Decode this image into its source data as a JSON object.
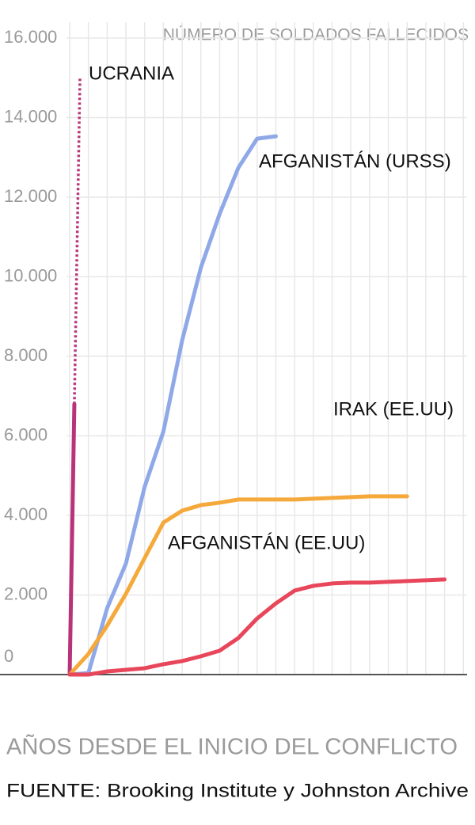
{
  "chart_data": {
    "type": "line",
    "y_label": "NÚMERO DE SOLDADOS FALLECIDOS",
    "x_label": "AÑOS DESDE EL INICIO DEL CONFLICTO",
    "source": "FUENTE: Brooking Institute y Johnston Archive",
    "xlim": [
      0,
      21.2
    ],
    "ylim": [
      0,
      16000
    ],
    "yticks": [
      0,
      {
        "value": 2000,
        "label": "2.000"
      },
      {
        "value": 4000,
        "label": "4.000"
      },
      {
        "value": 6000,
        "label": "6.000"
      },
      {
        "value": 8000,
        "label": "8.000"
      },
      {
        "value": 10000,
        "label": "10.000"
      },
      {
        "value": 12000,
        "label": "12.000"
      },
      {
        "value": 14000,
        "label": "14.000"
      },
      {
        "value": 16000,
        "label": "16.000"
      }
    ],
    "grid": true,
    "series": [
      {
        "name": "UCRANIA",
        "color": "#b8337a",
        "x": [
          0,
          0.25
        ],
        "values": [
          0,
          6800
        ],
        "projection": {
          "x": [
            0.25,
            0.55
          ],
          "values": [
            6800,
            15000
          ]
        }
      },
      {
        "name": "AFGANISTÁN (URSS)",
        "color": "#8fa8e8",
        "x": [
          0,
          1,
          2,
          3,
          4,
          5,
          6,
          7,
          8,
          9,
          10,
          11
        ],
        "values": [
          0,
          40,
          1670,
          2790,
          4720,
          6110,
          8400,
          10230,
          11580,
          12740,
          13470,
          13530
        ]
      },
      {
        "name": "IRAK (EE.UU)",
        "color": "#f5a93a",
        "x": [
          0,
          1,
          2,
          3,
          4,
          5,
          6,
          7,
          8,
          9,
          10,
          11,
          12,
          13,
          14,
          15,
          16,
          17,
          18
        ],
        "values": [
          0,
          520,
          1230,
          2030,
          2930,
          3820,
          4120,
          4260,
          4320,
          4400,
          4400,
          4400,
          4400,
          4420,
          4440,
          4460,
          4480,
          4480,
          4480
        ]
      },
      {
        "name": "AFGANISTÁN (EE.UU)",
        "color": "#e8465a",
        "x": [
          0,
          1,
          2,
          3,
          4,
          5,
          6,
          7,
          8,
          9,
          10,
          11,
          12,
          13,
          14,
          15,
          16,
          17,
          18,
          19,
          20
        ],
        "values": [
          0,
          0,
          80,
          120,
          160,
          260,
          340,
          460,
          600,
          920,
          1410,
          1790,
          2110,
          2230,
          2290,
          2310,
          2310,
          2330,
          2350,
          2370,
          2390
        ]
      }
    ]
  }
}
